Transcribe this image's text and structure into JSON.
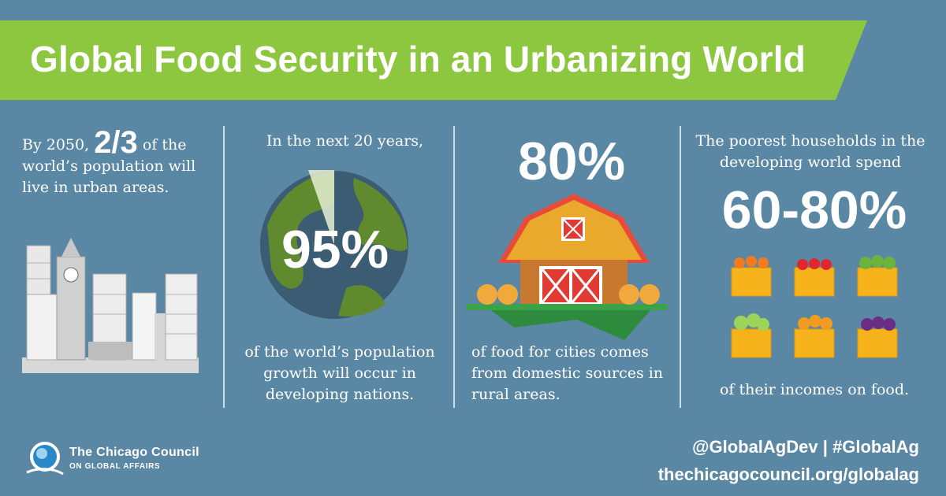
{
  "banner": {
    "title": "Global Food Security in an Urbanizing World"
  },
  "col1": {
    "prefix": "By 2050,",
    "stat": "2/3",
    "suffix": "of the world’s population will live in urban areas."
  },
  "col2": {
    "top": "In the next 20 years,",
    "stat": "95%",
    "bottom": "of the world’s population growth will occur in developing nations."
  },
  "col3": {
    "stat": "80%",
    "bottom": "of food for cities comes from domestic sources in rural areas."
  },
  "col4": {
    "top": "The poorest households in the developing world spend",
    "stat": "60-80%",
    "bottom": "of their incomes on food."
  },
  "footer": {
    "logo_name": "The Chicago Council",
    "logo_sub": "ON GLOBAL AFFAIRS",
    "social": "@GlobalAgDev | #GlobalAg",
    "url": "thechicagocouncil.org/globalag"
  },
  "icons": [
    "city-skyline-icon",
    "globe-icon",
    "barn-icon",
    "produce-crates-icon",
    "chicago-council-logo-icon"
  ],
  "colors": {
    "background": "#5a87a3",
    "banner": "#8dc63f",
    "text": "#ffffff"
  }
}
